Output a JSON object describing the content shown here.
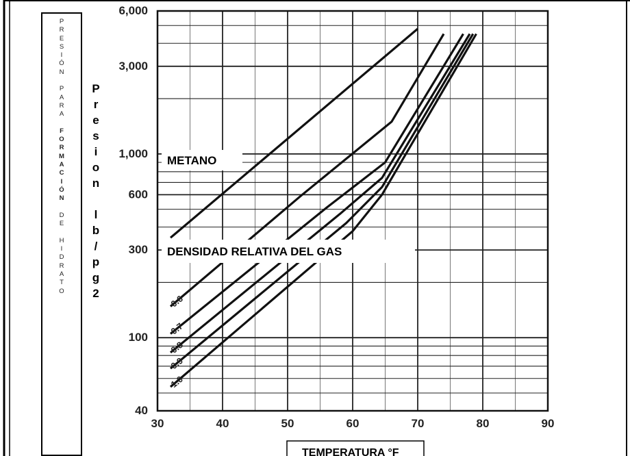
{
  "chart_data": {
    "type": "line",
    "yscale": "log",
    "xlim": [
      30,
      90
    ],
    "ylim": [
      40,
      6000
    ],
    "x_ticks": [
      30,
      40,
      50,
      60,
      70,
      80,
      90
    ],
    "x_tick_labels": [
      "30",
      "40",
      "50",
      "60",
      "70",
      "80",
      "90"
    ],
    "y_ticks": [
      40,
      100,
      300,
      600,
      1000,
      3000,
      6000
    ],
    "y_tick_labels": [
      "40",
      "100",
      "300",
      "600",
      "1,000",
      "3,000",
      "6,000"
    ],
    "grid": true,
    "xlabel": "TEMPERATURA °F",
    "ylabel": "Presion lb/pg2",
    "side_label": "PRESIÓN PARA FORMACIÓN DE HIDRATO",
    "annotations": [
      "METANO",
      "DENSIDAD RELATIVA DEL GAS"
    ],
    "series": [
      {
        "name": "METANO",
        "points": [
          [
            32,
            350
          ],
          [
            70,
            4800
          ]
        ]
      },
      {
        "name": "0.6",
        "points": [
          [
            32,
            148
          ],
          [
            52,
            590
          ],
          [
            66,
            1500
          ],
          [
            74,
            4500
          ]
        ]
      },
      {
        "name": "0.7",
        "points": [
          [
            32,
            105
          ],
          [
            56,
            510
          ],
          [
            65,
            900
          ],
          [
            77,
            4500
          ]
        ]
      },
      {
        "name": "0.8",
        "points": [
          [
            32,
            83
          ],
          [
            58,
            470
          ],
          [
            64.5,
            740
          ],
          [
            78,
            4500
          ]
        ]
      },
      {
        "name": "0.9",
        "points": [
          [
            32,
            68
          ],
          [
            59,
            420
          ],
          [
            64.5,
            660
          ],
          [
            78.5,
            4500
          ]
        ]
      },
      {
        "name": "1.0",
        "points": [
          [
            32,
            54
          ],
          [
            60,
            380
          ],
          [
            64.5,
            600
          ],
          [
            79,
            4500
          ]
        ]
      }
    ],
    "line_color": "#111111"
  },
  "side_label_lines": [
    "P",
    "R",
    "E",
    "S",
    "I",
    "Ó",
    "N",
    "",
    "P",
    "A",
    "R",
    "A",
    "",
    "F",
    "O",
    "R",
    "M",
    "A",
    "C",
    "I",
    "Ó",
    "N",
    "",
    "D",
    "E",
    "",
    "H",
    "I",
    "D",
    "R",
    "A",
    "T",
    "O"
  ],
  "side_label_bold_from": 13,
  "side_label_bold_to": 21,
  "units_label_lines": [
    "P",
    "r",
    "e",
    "s",
    "i",
    "o",
    "n",
    "",
    "l",
    "b",
    "/",
    "p",
    "g",
    "2"
  ]
}
